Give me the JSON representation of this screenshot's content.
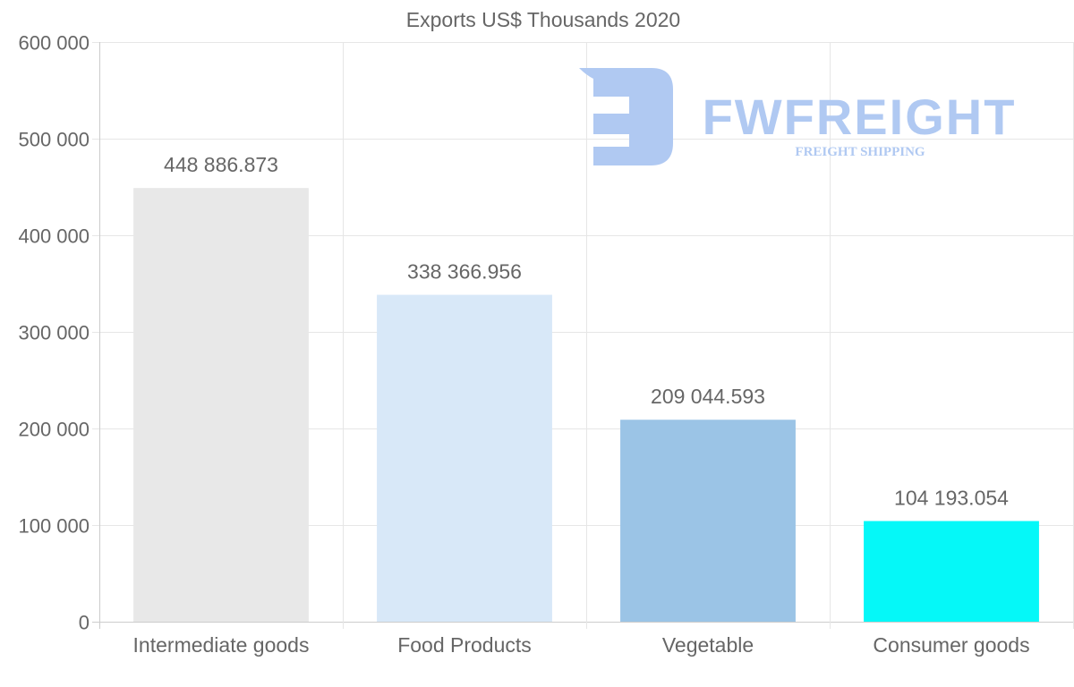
{
  "chart_data": {
    "type": "bar",
    "title": "Exports US$ Thousands 2020",
    "categories": [
      "Intermediate goods",
      "Food Products",
      "Vegetable",
      "Consumer goods"
    ],
    "values": [
      448886.873,
      338366.956,
      209044.593,
      104193.054
    ],
    "data_labels": [
      "448 886.873",
      "338 366.956",
      "209 044.593",
      "104 193.054"
    ],
    "colors": [
      "#e8e8e8",
      "#d8e8f8",
      "#9bc4e6",
      "#05f8f8"
    ],
    "ylim": [
      0,
      600000
    ],
    "yticks": [
      0,
      100000,
      200000,
      300000,
      400000,
      500000,
      600000
    ],
    "ytick_labels": [
      "0",
      "100 000",
      "200 000",
      "300 000",
      "400 000",
      "500 000",
      "600 000"
    ],
    "xlabel": "",
    "ylabel": "",
    "grid": true,
    "legend": "none"
  },
  "watermark": {
    "brand": "FWFREIGHT",
    "tagline": "FREIGHT SHIPPING",
    "color": "#b0c9f2"
  }
}
